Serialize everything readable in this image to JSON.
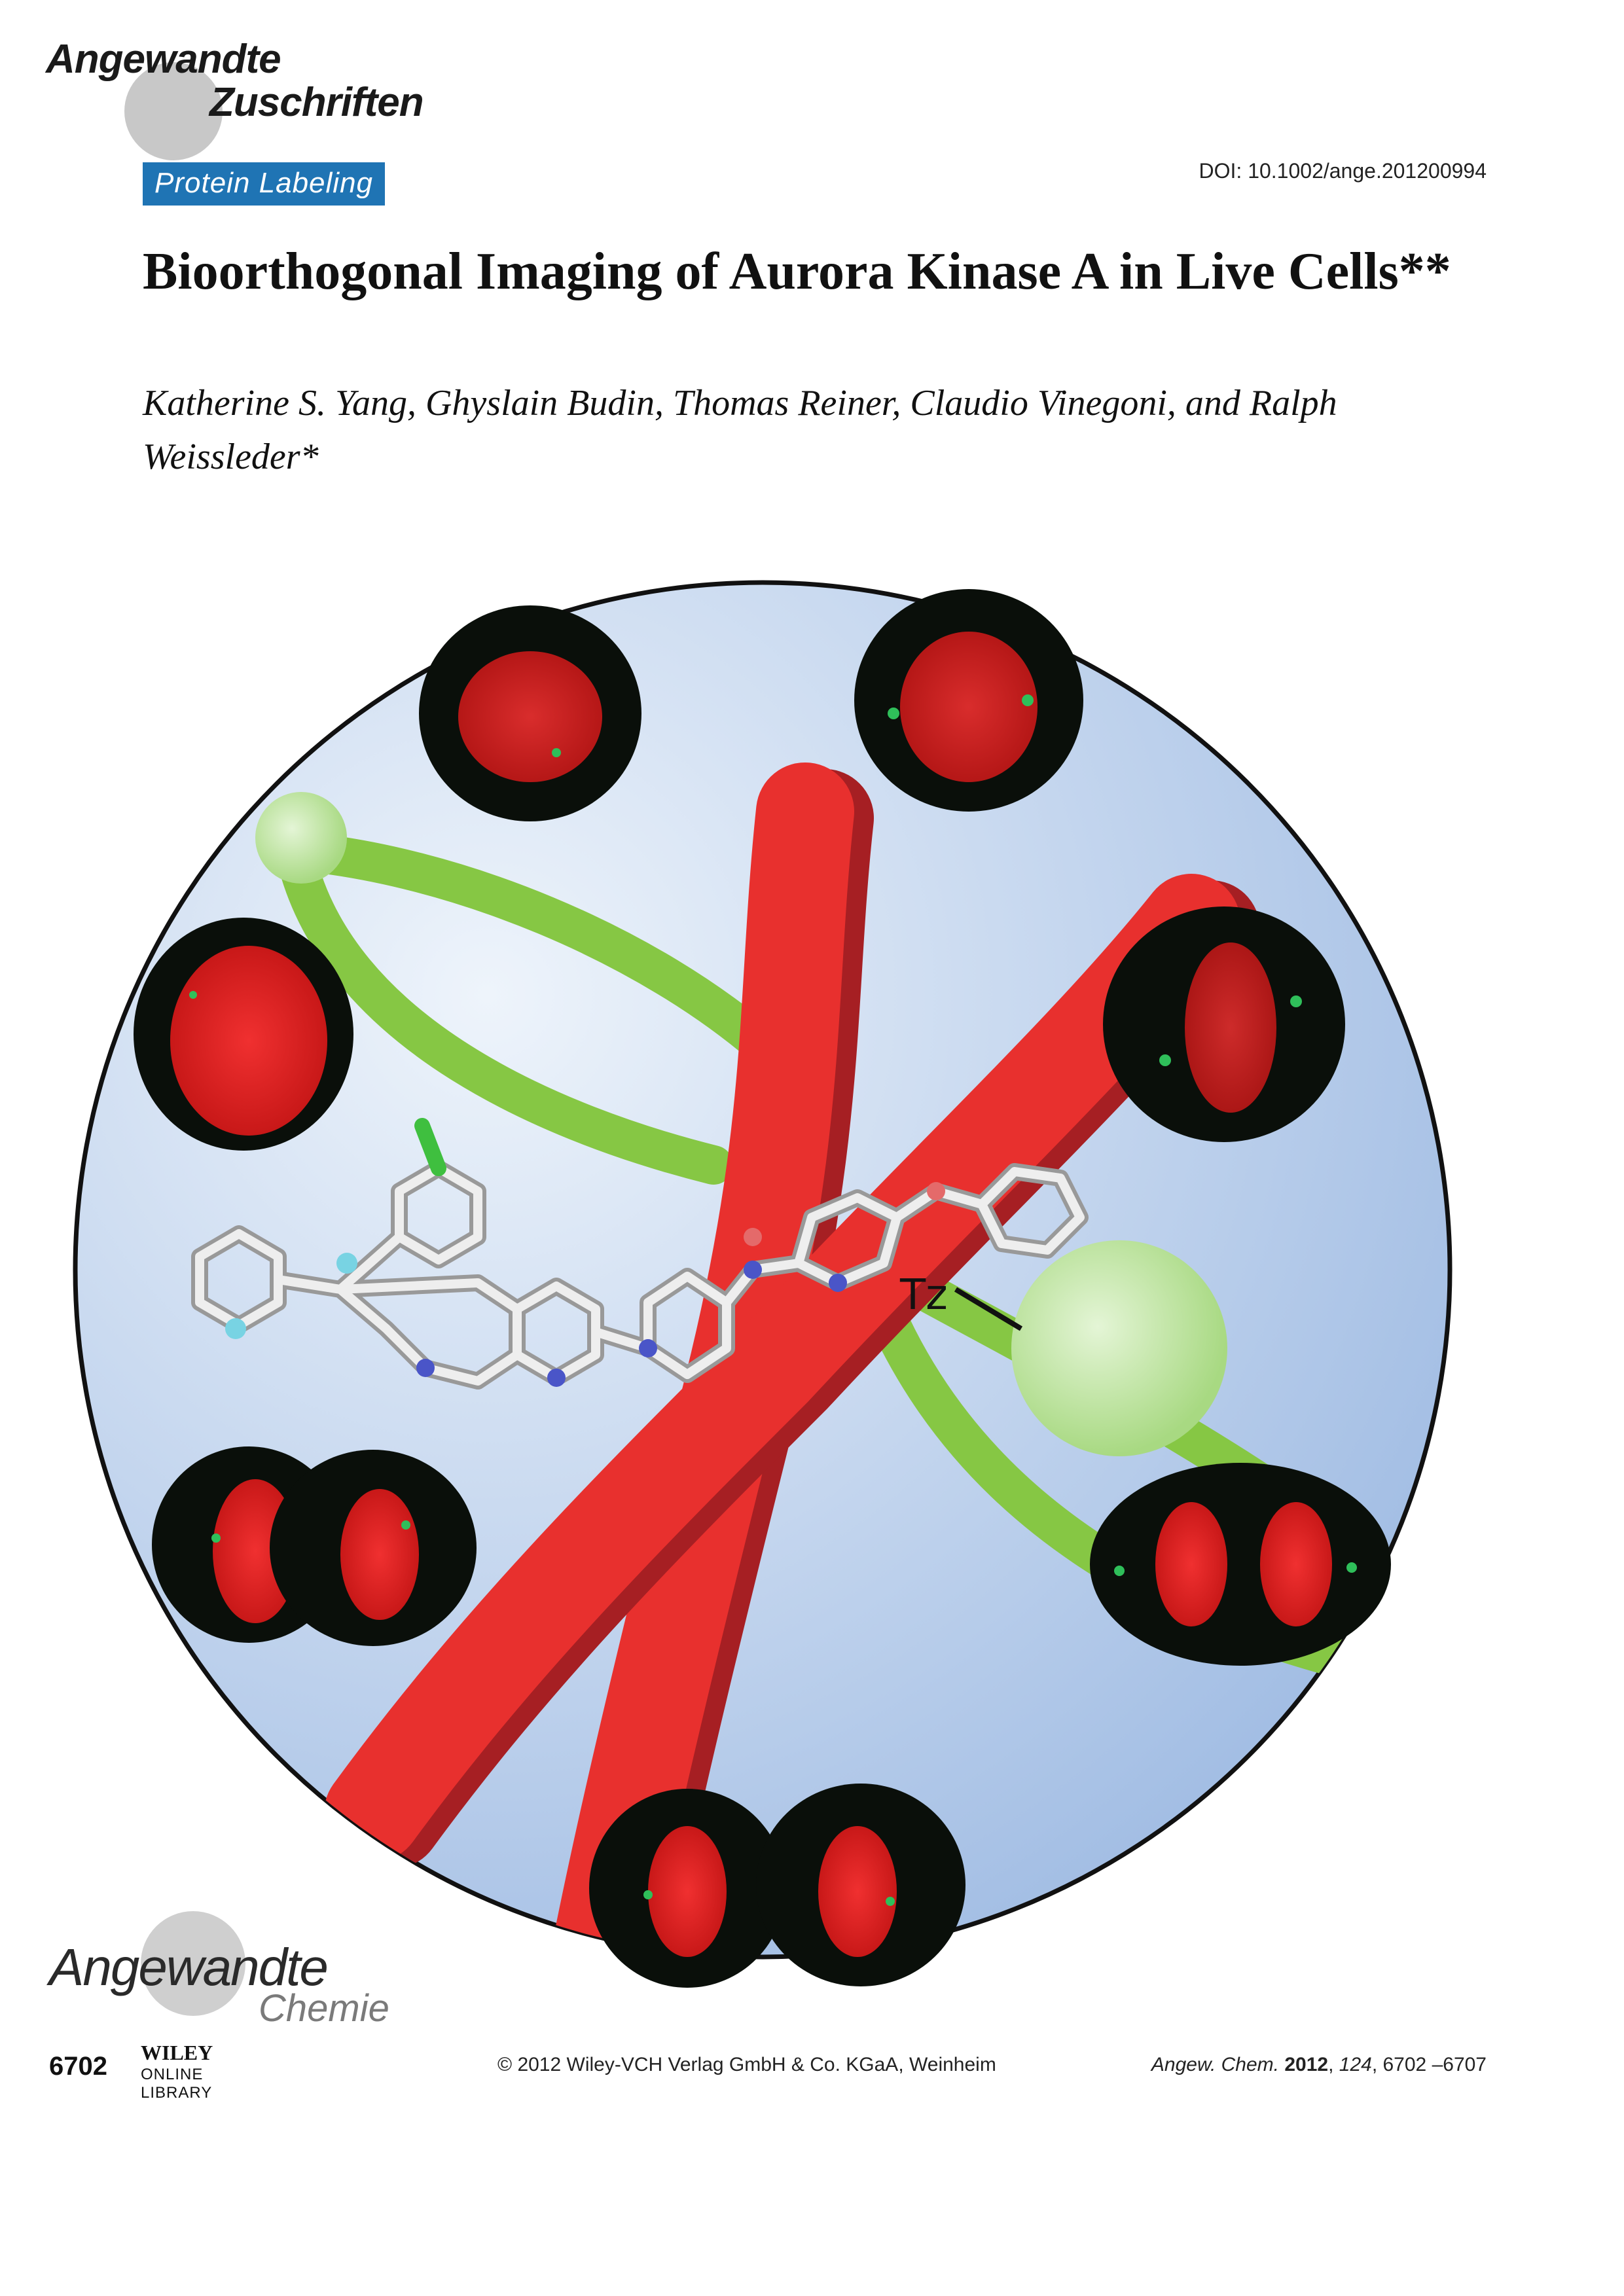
{
  "header": {
    "journal_mark_line1": "Angewandte",
    "journal_mark_line2": "Zuschriften",
    "section": "Protein Labeling",
    "doi": "DOI: 10.1002/ange.201200994"
  },
  "article": {
    "title": "Bioorthogonal Imaging of Aurora Kinase A in Live Cells**",
    "authors": "Katherine S. Yang, Ghyslain Budin, Thomas Reiner, Claudio Vinegoni, and Ralph Weissleder*"
  },
  "figure": {
    "label_tz": "Tz",
    "colors": {
      "background_light": "#e9f0fa",
      "background_dark": "#a3bfe4",
      "chromosome": "#e8302e",
      "chromosome_shadow": "#a61f23",
      "spindle": "#86c744",
      "centrosome": "#c9eab0",
      "cell_image_bg": "#0a0f0a",
      "stain_red": "#e8262b",
      "stain_green": "#2fbf5a"
    }
  },
  "brand": {
    "line1": "Angewandte",
    "line2": "Chemie"
  },
  "footer": {
    "page_number": "6702",
    "publisher_logo_line1": "WILEY",
    "publisher_logo_line2": "ONLINE LIBRARY",
    "copyright": "© 2012 Wiley-VCH Verlag GmbH & Co. KGaA, Weinheim",
    "journal_abbrev": "Angew. Chem.",
    "year": "2012",
    "volume": "124",
    "pages": "6702 –6707"
  }
}
